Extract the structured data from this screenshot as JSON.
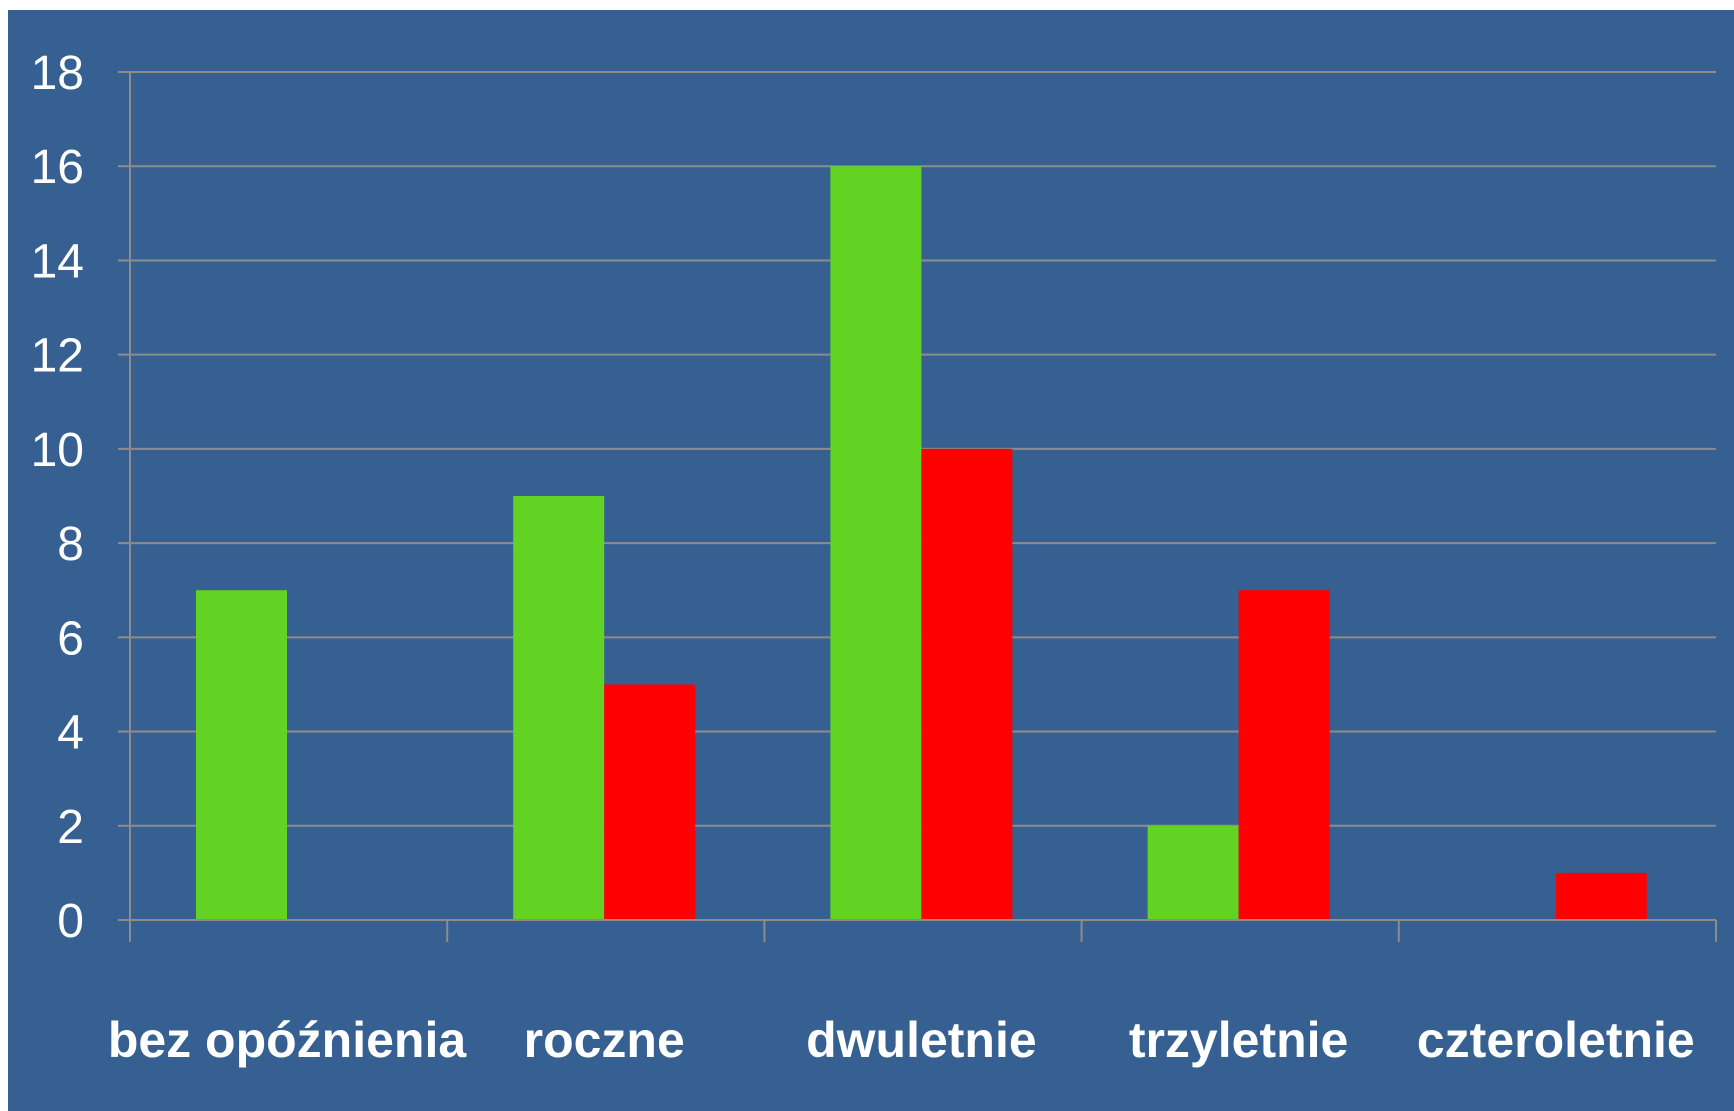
{
  "chart_data": {
    "type": "bar",
    "categories": [
      "bez opóźnienia",
      "roczne",
      "dwuletnie",
      "trzyletnie",
      "czteroletnie"
    ],
    "series": [
      {
        "values": [
          7,
          9,
          16,
          2,
          0
        ],
        "color": "#62d322"
      },
      {
        "values": [
          0,
          5,
          10,
          7,
          1
        ],
        "color": "#ff0000"
      }
    ],
    "ylim": [
      0,
      18
    ],
    "yticks": [
      0,
      2,
      4,
      6,
      8,
      10,
      12,
      14,
      16,
      18
    ],
    "grid": true,
    "legend": "none",
    "background_color": "#366092",
    "gridline_color": "#8c8c8c",
    "text_color": "#ffffff"
  }
}
